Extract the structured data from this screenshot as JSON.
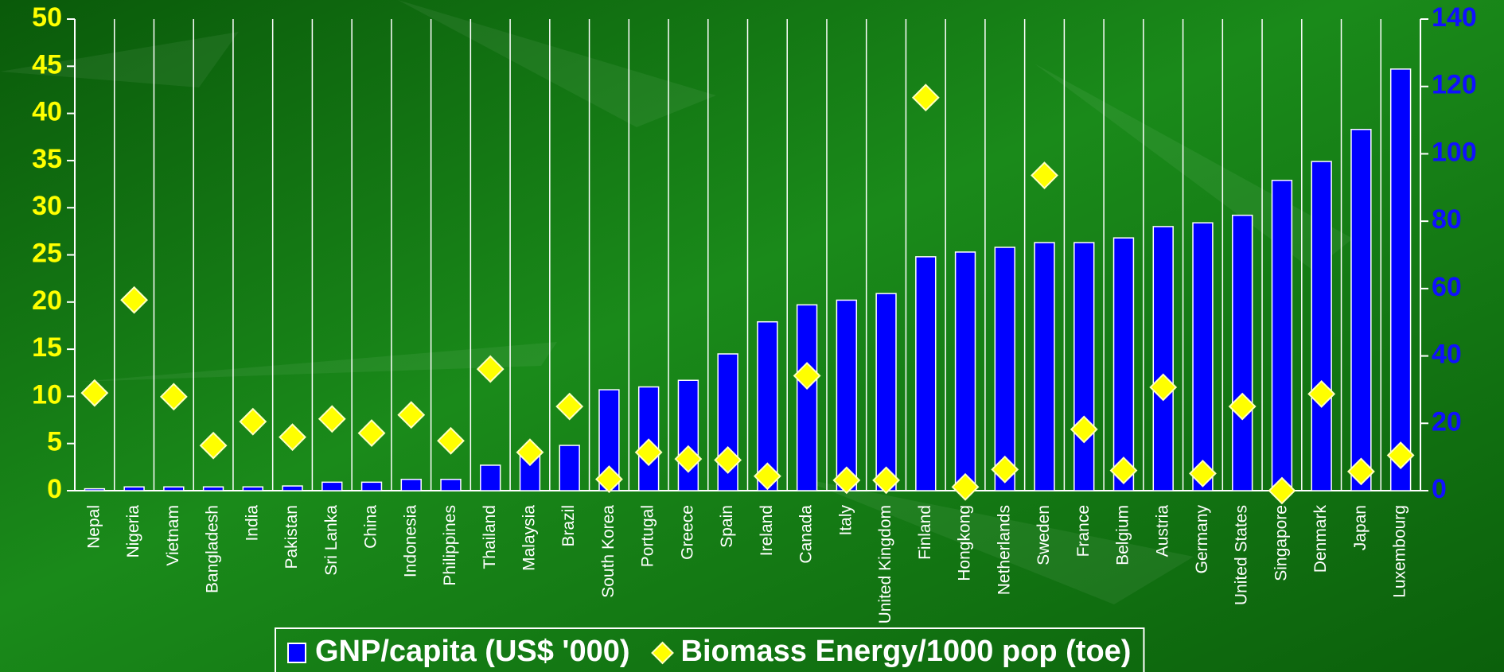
{
  "chart_data": {
    "type": "bar",
    "categories": [
      "Nepal",
      "Nigeria",
      "Vietnam",
      "Bangladesh",
      "India",
      "Pakistan",
      "Sri Lanka",
      "China",
      "Indonesia",
      "Philippines",
      "Thailand",
      "Malaysia",
      "Brazil",
      "South Korea",
      "Portugal",
      "Greece",
      "Spain",
      "Ireland",
      "Canada",
      "Italy",
      "United Kingdom",
      "Finland",
      "Hongkong",
      "Netherlands",
      "Sweden",
      "France",
      "Belgium",
      "Austria",
      "Germany",
      "United States",
      "Singapore",
      "Denmark",
      "Japan",
      "Luxembourg"
    ],
    "series": [
      {
        "name": "GNP/capita (US$ '000)",
        "type": "bar",
        "color": "#0000ff",
        "values": [
          0.2,
          0.4,
          0.4,
          0.4,
          0.4,
          0.5,
          0.9,
          0.9,
          1.2,
          1.2,
          2.7,
          4,
          4.8,
          10.7,
          11,
          11.7,
          14.5,
          17.9,
          19.7,
          20.2,
          20.9,
          24.8,
          25.3,
          25.8,
          26.3,
          26.3,
          26.8,
          28,
          28.4,
          29.2,
          32.9,
          34.9,
          38.3,
          44.7
        ]
      },
      {
        "name": "Biomass Energy/1000 pop (toe)",
        "type": "scatter",
        "marker": "diamond",
        "axis": "y2",
        "color": "#ffff00",
        "values": [
          29,
          56.6,
          27.9,
          13.4,
          20.5,
          15.9,
          21.3,
          17.1,
          22.5,
          14.8,
          36.1,
          11.4,
          25,
          3.4,
          11.4,
          9.4,
          9.1,
          4.3,
          34.1,
          3.1,
          3.1,
          116.7,
          1.1,
          6.3,
          93.6,
          18.2,
          6,
          30.7,
          5.1,
          25,
          0,
          28.7,
          5.7,
          10.5
        ]
      }
    ],
    "ylim": [
      0,
      50
    ],
    "yticks": [
      0,
      5,
      10,
      15,
      20,
      25,
      30,
      35,
      40,
      45,
      50
    ],
    "y2lim": [
      0,
      140
    ],
    "y2ticks": [
      0,
      20,
      40,
      60,
      80,
      100,
      120,
      140
    ],
    "grid": true,
    "legend": "bottom"
  }
}
